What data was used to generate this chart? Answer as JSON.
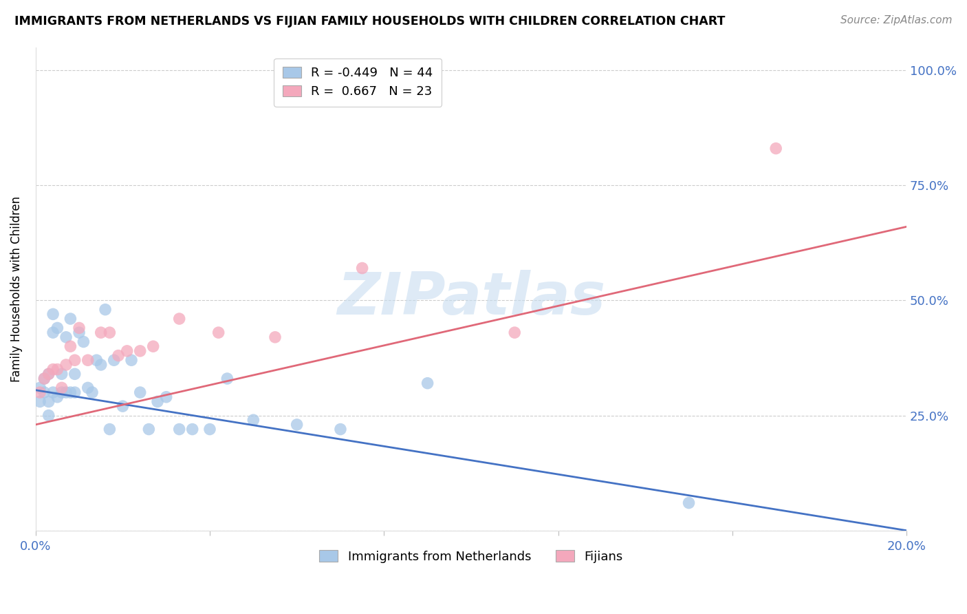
{
  "title": "IMMIGRANTS FROM NETHERLANDS VS FIJIAN FAMILY HOUSEHOLDS WITH CHILDREN CORRELATION CHART",
  "source": "Source: ZipAtlas.com",
  "ylabel": "Family Households with Children",
  "xlim": [
    0.0,
    0.2
  ],
  "ylim": [
    0.0,
    1.05
  ],
  "yticks": [
    0.0,
    0.25,
    0.5,
    0.75,
    1.0
  ],
  "ytick_labels": [
    "",
    "25.0%",
    "50.0%",
    "75.0%",
    "100.0%"
  ],
  "xticks": [
    0.0,
    0.04,
    0.08,
    0.12,
    0.16,
    0.2
  ],
  "xtick_labels_show": [
    "0.0%",
    "",
    "",
    "",
    "",
    "20.0%"
  ],
  "blue_R": -0.449,
  "blue_N": 44,
  "pink_R": 0.667,
  "pink_N": 23,
  "blue_color": "#a8c8e8",
  "pink_color": "#f4a8bc",
  "blue_line_color": "#4472c4",
  "pink_line_color": "#e06878",
  "watermark_text": "ZIPatlas",
  "blue_scatter_x": [
    0.001,
    0.001,
    0.002,
    0.002,
    0.003,
    0.003,
    0.003,
    0.004,
    0.004,
    0.004,
    0.005,
    0.005,
    0.006,
    0.006,
    0.007,
    0.007,
    0.008,
    0.008,
    0.009,
    0.009,
    0.01,
    0.011,
    0.012,
    0.013,
    0.014,
    0.015,
    0.016,
    0.017,
    0.018,
    0.02,
    0.022,
    0.024,
    0.026,
    0.028,
    0.03,
    0.033,
    0.036,
    0.04,
    0.044,
    0.05,
    0.06,
    0.07,
    0.09,
    0.15
  ],
  "blue_scatter_y": [
    0.31,
    0.28,
    0.33,
    0.3,
    0.34,
    0.28,
    0.25,
    0.47,
    0.43,
    0.3,
    0.44,
    0.29,
    0.34,
    0.3,
    0.42,
    0.3,
    0.46,
    0.3,
    0.34,
    0.3,
    0.43,
    0.41,
    0.31,
    0.3,
    0.37,
    0.36,
    0.48,
    0.22,
    0.37,
    0.27,
    0.37,
    0.3,
    0.22,
    0.28,
    0.29,
    0.22,
    0.22,
    0.22,
    0.33,
    0.24,
    0.23,
    0.22,
    0.32,
    0.06
  ],
  "pink_scatter_x": [
    0.001,
    0.002,
    0.003,
    0.004,
    0.005,
    0.006,
    0.007,
    0.008,
    0.009,
    0.01,
    0.012,
    0.015,
    0.017,
    0.019,
    0.021,
    0.024,
    0.027,
    0.033,
    0.042,
    0.055,
    0.075,
    0.11,
    0.17
  ],
  "pink_scatter_y": [
    0.3,
    0.33,
    0.34,
    0.35,
    0.35,
    0.31,
    0.36,
    0.4,
    0.37,
    0.44,
    0.37,
    0.43,
    0.43,
    0.38,
    0.39,
    0.39,
    0.4,
    0.46,
    0.43,
    0.42,
    0.57,
    0.43,
    0.83
  ],
  "blue_line_x": [
    0.0,
    0.2
  ],
  "blue_line_y": [
    0.305,
    0.0
  ],
  "pink_line_x": [
    0.0,
    0.2
  ],
  "pink_line_y": [
    0.23,
    0.66
  ]
}
